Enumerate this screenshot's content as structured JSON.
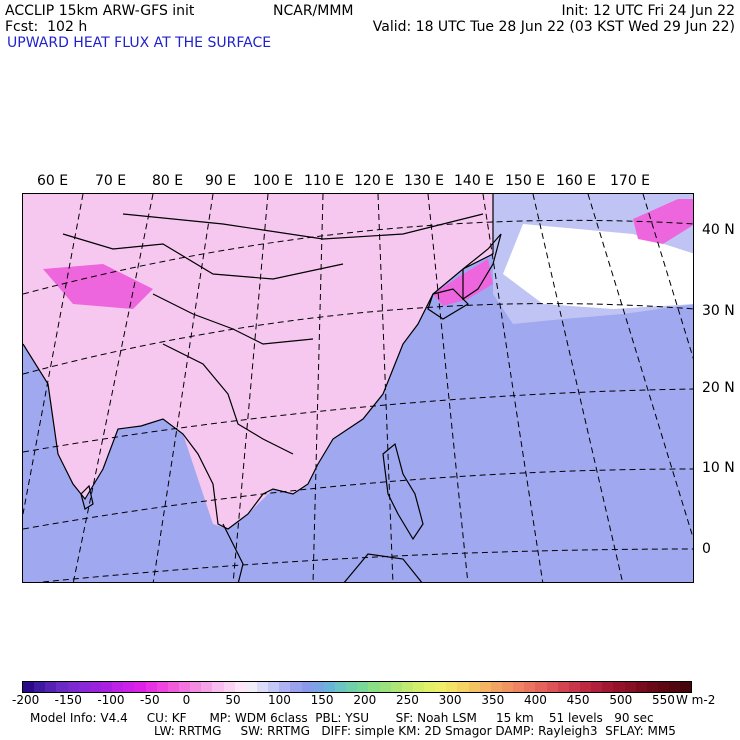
{
  "header": {
    "model": "ACCLIP 15km ARW-GFS init",
    "forecast": "Fcst:  102 h",
    "center": "NCAR/MMM",
    "init": "Init: 12 UTC Fri 24 Jun 22",
    "valid": "Valid: 18 UTC Tue 28 Jun 22 (03 KST Wed 29 Jun 22)",
    "field": "UPWARD HEAT FLUX AT THE SURFACE"
  },
  "map": {
    "longitude_labels": [
      "60 E",
      "70 E",
      "80 E",
      "90 E",
      "100 E",
      "110 E",
      "120 E",
      "130 E",
      "140 E",
      "150 E",
      "160 E",
      "170 E"
    ],
    "latitude_labels": [
      "40 N",
      "30 N",
      "20 N",
      "10 N",
      "0"
    ],
    "colors": {
      "land_flux": "#f6c8f0",
      "strong_land_flux": "#ee66dd",
      "ocean_flux": "#a0a8f0",
      "ocean_flux_light": "#c0c4f4",
      "neutral": "#ffffff"
    }
  },
  "colorbar": {
    "tick_labels": [
      "-200",
      "-150",
      "-100",
      "-50",
      "0",
      "50",
      "100",
      "150",
      "200",
      "250",
      "300",
      "350",
      "400",
      "450",
      "500",
      "550"
    ],
    "unit": "W m-2",
    "colors": [
      "#2a0a8a",
      "#3d1aa0",
      "#5522b4",
      "#6a2ac4",
      "#7a2ad0",
      "#8a28d8",
      "#9a24de",
      "#aa20e2",
      "#bb22e6",
      "#cc22e8",
      "#dd22e8",
      "#e830e4",
      "#ee44e0",
      "#f05cdc",
      "#f274de",
      "#f48ce2",
      "#f6a4e8",
      "#f8bcee",
      "#fad2f4",
      "#fce6f8",
      "#f2eef8",
      "#dcdcfa",
      "#c4c8f6",
      "#acb2f2",
      "#9aa2ee",
      "#8a9aea",
      "#7aa4e4",
      "#6ab4d8",
      "#6cc4c4",
      "#70d0ac",
      "#7ad896",
      "#8ade84",
      "#9ce27c",
      "#aee676",
      "#c0ea70",
      "#d2ee6c",
      "#e2f06a",
      "#eeee68",
      "#f2e266",
      "#f4d464",
      "#f4c462",
      "#f4b462",
      "#f2a462",
      "#f09462",
      "#ee8462",
      "#ea7460",
      "#e4645c",
      "#dc5456",
      "#d24450",
      "#c8364a",
      "#bc2a42",
      "#b0203a",
      "#a21832",
      "#94122a",
      "#861024",
      "#780c1e",
      "#6a0a18",
      "#5e0814",
      "#520610",
      "#46040c"
    ]
  },
  "footer": {
    "line1": "Model Info: V4.4     CU: KF      MP: WDM 6class  PBL: YSU       SF: Noah LSM     15 km    51 levels   90 sec",
    "line2": "LW: RRTMG     SW: RRTMG   DIFF: simple KM: 2D Smagor DAMP: Rayleigh3  SFLAY: MM5"
  }
}
